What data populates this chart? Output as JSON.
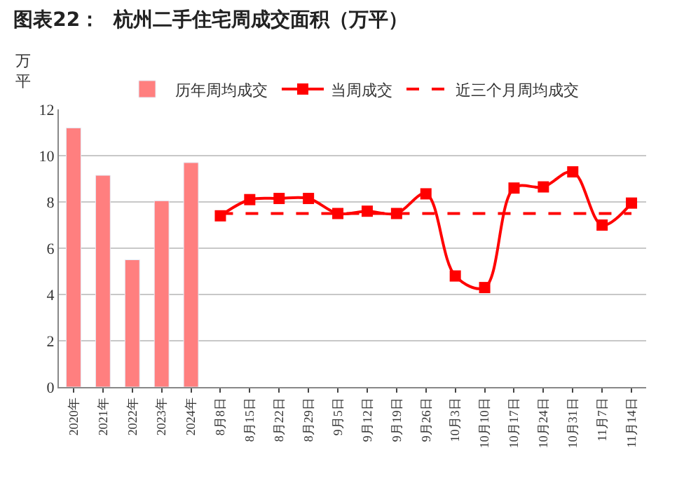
{
  "chart_data": {
    "type": "bar",
    "title": "图表22：  杭州二手住宅周成交面积（万平）",
    "ylabel": "万平",
    "categories": [
      "2020年",
      "2021年",
      "2022年",
      "2023年",
      "2024年",
      "8月8日",
      "8月15日",
      "8月22日",
      "8月29日",
      "9月5日",
      "9月12日",
      "9月19日",
      "9月26日",
      "10月3日",
      "10月10日",
      "10月17日",
      "10月24日",
      "10月31日",
      "11月7日",
      "11月14日"
    ],
    "series": [
      {
        "name": "历年周均成交",
        "color": "#ff7f7f",
        "values": [
          11.2,
          9.15,
          5.5,
          8.05,
          9.7,
          null,
          null,
          null,
          null,
          null,
          null,
          null,
          null,
          null,
          null,
          null,
          null,
          null,
          null,
          null
        ]
      },
      {
        "name": "当周成交",
        "type": "line",
        "color": "#ff0000",
        "marker": "square",
        "line_style": "solid",
        "values": [
          null,
          null,
          null,
          null,
          null,
          7.4,
          8.1,
          8.15,
          8.15,
          7.5,
          7.6,
          7.5,
          8.35,
          4.8,
          4.3,
          8.6,
          8.65,
          9.3,
          7.0,
          7.95
        ]
      },
      {
        "name": "近三个月周均成交",
        "type": "line",
        "color": "#ff0000",
        "marker": "none",
        "line_style": "dashed",
        "values": [
          null,
          null,
          null,
          null,
          null,
          7.5,
          7.5,
          7.5,
          7.5,
          7.5,
          7.5,
          7.5,
          7.5,
          7.5,
          7.5,
          7.5,
          7.5,
          7.5,
          7.5,
          7.5
        ]
      }
    ],
    "ylim": [
      0,
      12
    ],
    "yticks": [
      0,
      2,
      4,
      6,
      8,
      10,
      12
    ],
    "grid": "y",
    "legend": "top"
  }
}
